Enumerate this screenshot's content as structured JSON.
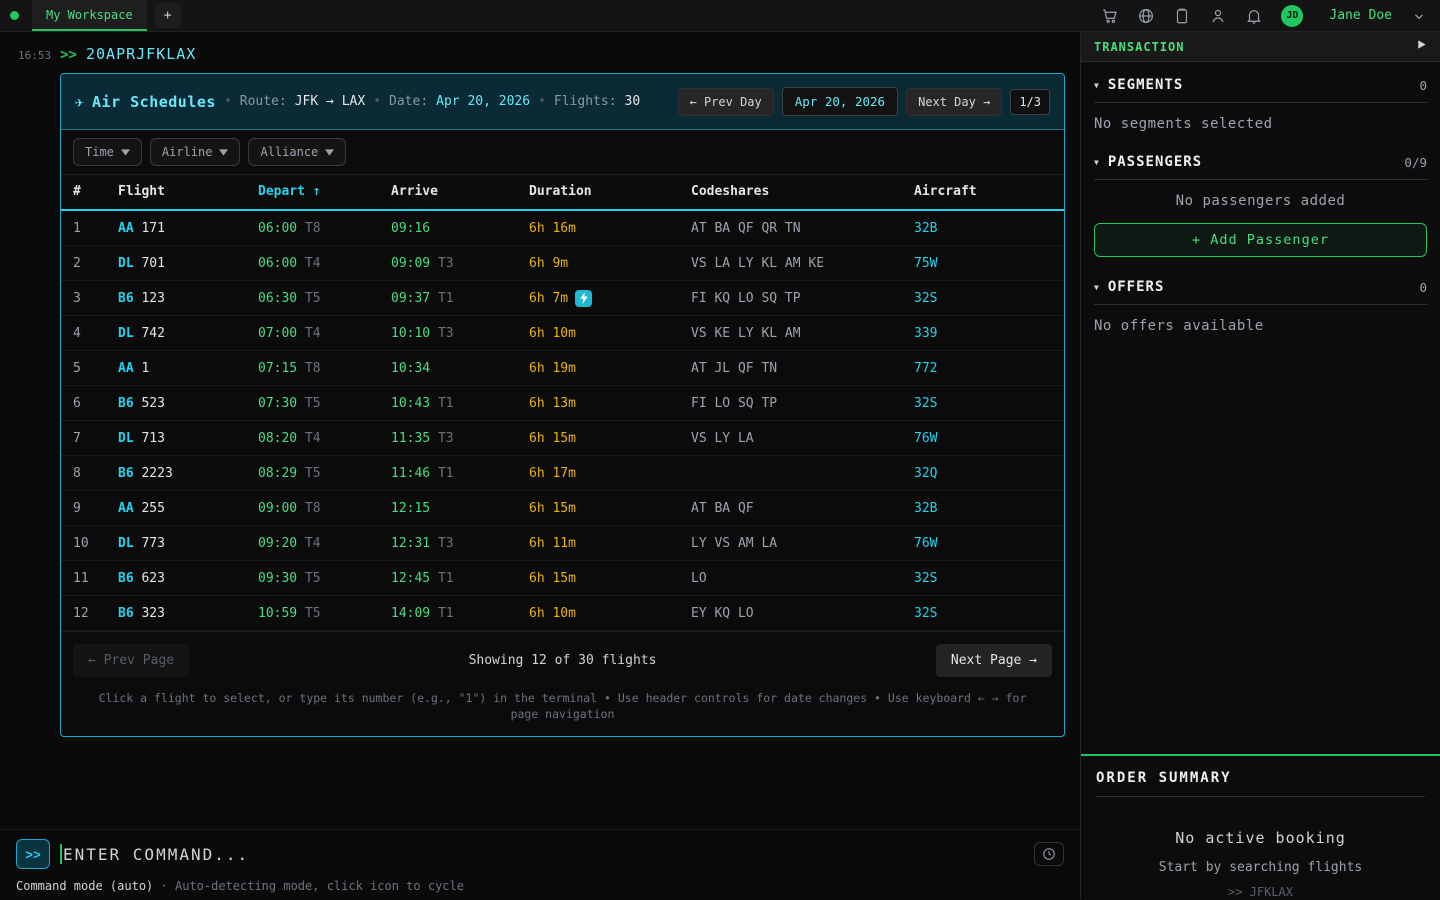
{
  "colors": {
    "accent_cyan": "#22d3ee",
    "accent_green": "#22c55e",
    "time_green": "#4ade80",
    "duration_yellow": "#eab308"
  },
  "topbar": {
    "workspace_tab": "My Workspace",
    "new_tab": "+",
    "user_initials": "JD",
    "user_name": "Jane Doe"
  },
  "terminal": {
    "history_time": "16:53",
    "prompt": ">>",
    "history_command": "20APRJFKLAX",
    "input_placeholder": "ENTER COMMAND...",
    "mode_label": "Command mode (auto)",
    "mode_separator": "·",
    "mode_hint": "Auto-detecting mode, click icon to cycle"
  },
  "schedule_panel": {
    "plane_icon": "✈",
    "title": "Air Schedules",
    "sep": "•",
    "route_label": "Route:",
    "route": "JFK → LAX",
    "date_label": "Date:",
    "date": "Apr 20, 2026",
    "flights_label": "Flights:",
    "flights_count": "30",
    "prev_day": "← Prev Day",
    "date_box": "Apr 20, 2026",
    "next_day": "Next Day →",
    "page_badge": "1/3",
    "filters": [
      {
        "id": "time",
        "label": "Time"
      },
      {
        "id": "airline",
        "label": "Airline"
      },
      {
        "id": "alliance",
        "label": "Alliance"
      }
    ],
    "columns": [
      "#",
      "Flight",
      "Depart",
      "Arrive",
      "Duration",
      "Codeshares",
      "Aircraft"
    ],
    "sort_icon": "↑",
    "rows": [
      {
        "num": "1",
        "airline": "AA",
        "flight": "171",
        "dep_time": "06:00",
        "dep_term": "T8",
        "arr_time": "09:16",
        "arr_term": "",
        "duration": "6h 16m",
        "express": false,
        "codeshares": "AT BA QF QR TN",
        "aircraft": "32B"
      },
      {
        "num": "2",
        "airline": "DL",
        "flight": "701",
        "dep_time": "06:00",
        "dep_term": "T4",
        "arr_time": "09:09",
        "arr_term": "T3",
        "duration": "6h 9m",
        "express": false,
        "codeshares": "VS LA LY KL AM KE",
        "aircraft": "75W"
      },
      {
        "num": "3",
        "airline": "B6",
        "flight": "123",
        "dep_time": "06:30",
        "dep_term": "T5",
        "arr_time": "09:37",
        "arr_term": "T1",
        "duration": "6h 7m",
        "express": true,
        "codeshares": "FI KQ LO SQ TP",
        "aircraft": "32S"
      },
      {
        "num": "4",
        "airline": "DL",
        "flight": "742",
        "dep_time": "07:00",
        "dep_term": "T4",
        "arr_time": "10:10",
        "arr_term": "T3",
        "duration": "6h 10m",
        "express": false,
        "codeshares": "VS KE LY KL AM",
        "aircraft": "339"
      },
      {
        "num": "5",
        "airline": "AA",
        "flight": "1",
        "dep_time": "07:15",
        "dep_term": "T8",
        "arr_time": "10:34",
        "arr_term": "",
        "duration": "6h 19m",
        "express": false,
        "codeshares": "AT JL QF TN",
        "aircraft": "772"
      },
      {
        "num": "6",
        "airline": "B6",
        "flight": "523",
        "dep_time": "07:30",
        "dep_term": "T5",
        "arr_time": "10:43",
        "arr_term": "T1",
        "duration": "6h 13m",
        "express": false,
        "codeshares": "FI LO SQ TP",
        "aircraft": "32S"
      },
      {
        "num": "7",
        "airline": "DL",
        "flight": "713",
        "dep_time": "08:20",
        "dep_term": "T4",
        "arr_time": "11:35",
        "arr_term": "T3",
        "duration": "6h 15m",
        "express": false,
        "codeshares": "VS LY LA",
        "aircraft": "76W"
      },
      {
        "num": "8",
        "airline": "B6",
        "flight": "2223",
        "dep_time": "08:29",
        "dep_term": "T5",
        "arr_time": "11:46",
        "arr_term": "T1",
        "duration": "6h 17m",
        "express": false,
        "codeshares": "",
        "aircraft": "32Q"
      },
      {
        "num": "9",
        "airline": "AA",
        "flight": "255",
        "dep_time": "09:00",
        "dep_term": "T8",
        "arr_time": "12:15",
        "arr_term": "",
        "duration": "6h 15m",
        "express": false,
        "codeshares": "AT BA QF",
        "aircraft": "32B"
      },
      {
        "num": "10",
        "airline": "DL",
        "flight": "773",
        "dep_time": "09:20",
        "dep_term": "T4",
        "arr_time": "12:31",
        "arr_term": "T3",
        "duration": "6h 11m",
        "express": false,
        "codeshares": "LY VS AM LA",
        "aircraft": "76W"
      },
      {
        "num": "11",
        "airline": "B6",
        "flight": "623",
        "dep_time": "09:30",
        "dep_term": "T5",
        "arr_time": "12:45",
        "arr_term": "T1",
        "duration": "6h 15m",
        "express": false,
        "codeshares": "LO",
        "aircraft": "32S"
      },
      {
        "num": "12",
        "airline": "B6",
        "flight": "323",
        "dep_time": "10:59",
        "dep_term": "T5",
        "arr_time": "14:09",
        "arr_term": "T1",
        "duration": "6h 10m",
        "express": false,
        "codeshares": "EY KQ LO",
        "aircraft": "32S"
      }
    ],
    "pagination": {
      "prev": "← Prev Page",
      "status": "Showing 12 of 30 flights",
      "next": "Next Page →"
    },
    "hint": "Click a flight to select, or type its number (e.g., \"1\") in the terminal • Use header controls for date changes • Use keyboard ← → for page navigation"
  },
  "sidebar": {
    "transaction_title": "TRANSACTION",
    "sections": [
      {
        "title": "SEGMENTS",
        "count": "0",
        "empty": "No segments selected"
      },
      {
        "title": "PASSENGERS",
        "count": "0/9",
        "empty": "No passengers added",
        "action": "+ Add Passenger"
      },
      {
        "title": "OFFERS",
        "count": "0",
        "empty": "No offers available"
      }
    ],
    "order_summary": {
      "title": "ORDER SUMMARY",
      "empty": "No active booking",
      "hint": "Start by searching flights",
      "command": ">> JFKLAX"
    }
  }
}
